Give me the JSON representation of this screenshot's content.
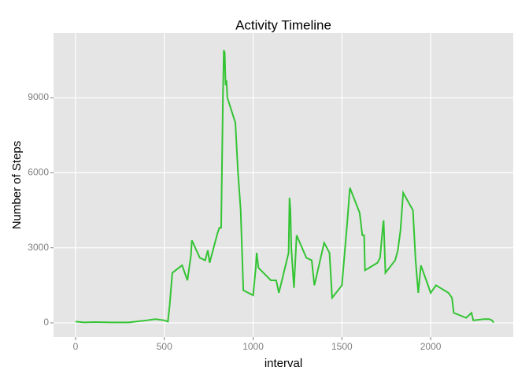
{
  "chart_data": {
    "type": "line",
    "title": "Activity Timeline",
    "x_label": "interval",
    "y_label": "Number of Steps",
    "x": [
      0,
      50,
      100,
      200,
      300,
      400,
      450,
      500,
      520,
      530,
      545,
      600,
      630,
      650,
      655,
      700,
      730,
      745,
      755,
      800,
      810,
      820,
      830,
      835,
      840,
      845,
      850,
      855,
      900,
      915,
      930,
      945,
      1000,
      1015,
      1020,
      1030,
      1100,
      1130,
      1145,
      1200,
      1205,
      1210,
      1215,
      1230,
      1245,
      1300,
      1330,
      1345,
      1400,
      1430,
      1445,
      1500,
      1530,
      1545,
      1600,
      1615,
      1625,
      1630,
      1700,
      1715,
      1730,
      1735,
      1745,
      1800,
      1815,
      1830,
      1845,
      1900,
      1915,
      1930,
      1945,
      2000,
      2030,
      2100,
      2120,
      2130,
      2200,
      2230,
      2240,
      2300,
      2330,
      2345,
      2355
    ],
    "values": [
      50,
      20,
      30,
      20,
      20,
      100,
      150,
      100,
      50,
      700,
      2000,
      2300,
      1700,
      2700,
      3300,
      2600,
      2500,
      2900,
      2400,
      3600,
      3800,
      3800,
      9000,
      10900,
      10800,
      9500,
      9700,
      9000,
      8000,
      6000,
      4500,
      1300,
      1100,
      2200,
      2800,
      2200,
      1700,
      1700,
      1200,
      2800,
      5000,
      4500,
      3000,
      1400,
      3500,
      2600,
      2500,
      1500,
      3200,
      2800,
      1000,
      1500,
      4000,
      5400,
      4400,
      3500,
      3500,
      2100,
      2400,
      2600,
      3800,
      4100,
      2000,
      2500,
      2900,
      3700,
      5200,
      4500,
      2500,
      1200,
      2300,
      1200,
      1500,
      1200,
      1000,
      400,
      200,
      400,
      100,
      150,
      150,
      100,
      10
    ],
    "color": "#33c433",
    "xlim": [
      -124,
      2465
    ],
    "ylim": [
      -567,
      11583
    ],
    "xticks": [
      0,
      500,
      1000,
      1500,
      2000
    ],
    "yticks": [
      0,
      3000,
      6000,
      9000
    ],
    "grid": true
  }
}
